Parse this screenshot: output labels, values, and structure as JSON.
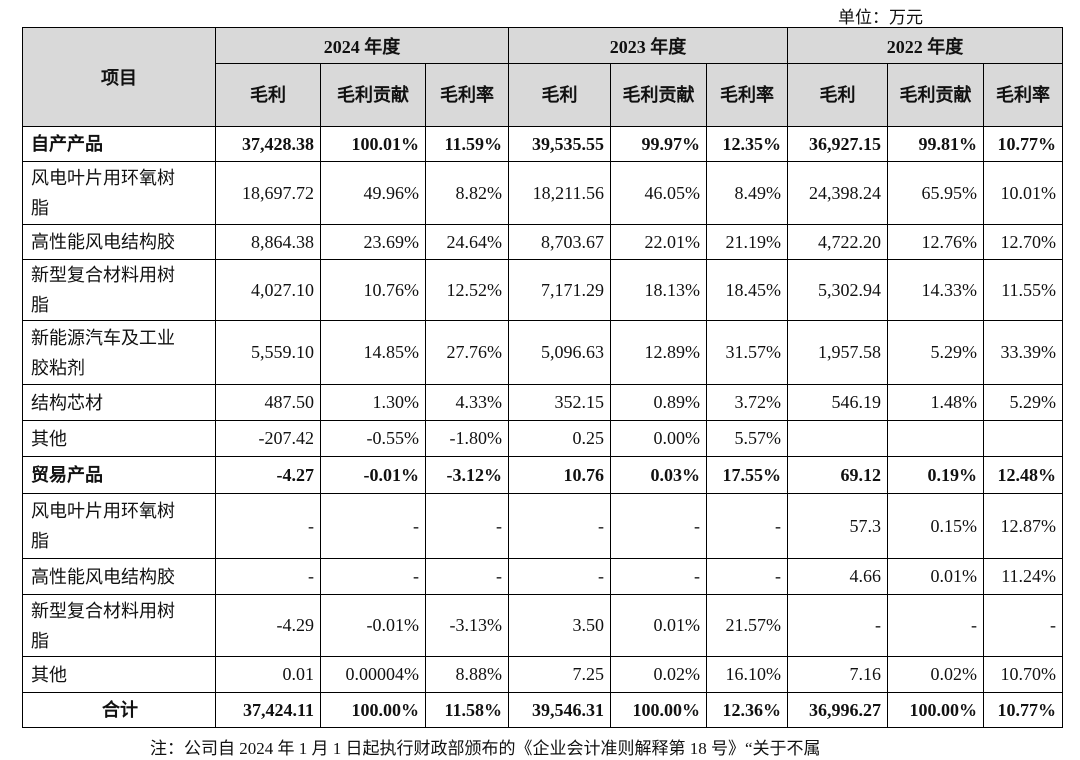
{
  "unit": "单位：万元",
  "table": {
    "item_header": "项目",
    "years": [
      "2024 年度",
      "2023 年度",
      "2022 年度"
    ],
    "columns": [
      "毛利",
      "毛利贡献",
      "毛利率",
      "毛利",
      "毛利贡献",
      "毛利率",
      "毛利",
      "毛利贡献",
      "毛利率"
    ],
    "rows": [
      {
        "label": "自产产品",
        "cells": [
          "37,428.38",
          "100.01%",
          "11.59%",
          "39,535.55",
          "99.97%",
          "12.35%",
          "36,927.15",
          "99.81%",
          "10.77%"
        ]
      },
      {
        "label": "风电叶片用环氧树脂",
        "cells": [
          "18,697.72",
          "49.96%",
          "8.82%",
          "18,211.56",
          "46.05%",
          "8.49%",
          "24,398.24",
          "65.95%",
          "10.01%"
        ]
      },
      {
        "label": "高性能风电结构胶",
        "cells": [
          "8,864.38",
          "23.69%",
          "24.64%",
          "8,703.67",
          "22.01%",
          "21.19%",
          "4,722.20",
          "12.76%",
          "12.70%"
        ]
      },
      {
        "label": "新型复合材料用树脂",
        "cells": [
          "4,027.10",
          "10.76%",
          "12.52%",
          "7,171.29",
          "18.13%",
          "18.45%",
          "5,302.94",
          "14.33%",
          "11.55%"
        ]
      },
      {
        "label": "新能源汽车及工业胶粘剂",
        "cells": [
          "5,559.10",
          "14.85%",
          "27.76%",
          "5,096.63",
          "12.89%",
          "31.57%",
          "1,957.58",
          "5.29%",
          "33.39%"
        ]
      },
      {
        "label": "结构芯材",
        "cells": [
          "487.50",
          "1.30%",
          "4.33%",
          "352.15",
          "0.89%",
          "3.72%",
          "546.19",
          "1.48%",
          "5.29%"
        ]
      },
      {
        "label": "其他",
        "cells": [
          "-207.42",
          "-0.55%",
          "-1.80%",
          "0.25",
          "0.00%",
          "5.57%",
          null,
          null,
          null
        ]
      },
      {
        "label": "贸易产品",
        "cells": [
          "-4.27",
          "-0.01%",
          "-3.12%",
          "10.76",
          "0.03%",
          "17.55%",
          "69.12",
          "0.19%",
          "12.48%"
        ]
      },
      {
        "label": "风电叶片用环氧树脂",
        "cells": [
          "-",
          "-",
          "-",
          "-",
          "-",
          "-",
          "57.3",
          "0.15%",
          "12.87%"
        ]
      },
      {
        "label": "高性能风电结构胶",
        "cells": [
          "-",
          "-",
          "-",
          "-",
          "-",
          "-",
          "4.66",
          "0.01%",
          "11.24%"
        ]
      },
      {
        "label": "新型复合材料用树脂",
        "cells": [
          "-4.29",
          "-0.01%",
          "-3.13%",
          "3.50",
          "0.01%",
          "21.57%",
          "-",
          "-",
          "-"
        ]
      },
      {
        "label": "其他",
        "cells": [
          "0.01",
          "0.00004%",
          "8.88%",
          "7.25",
          "0.02%",
          "16.10%",
          "7.16",
          "0.02%",
          "10.70%"
        ]
      },
      {
        "label": "合计",
        "cells": [
          "37,424.11",
          "100.00%",
          "11.58%",
          "39,546.31",
          "100.00%",
          "12.36%",
          "36,996.27",
          "100.00%",
          "10.77%"
        ]
      }
    ]
  },
  "footnote": "注：公司自 2024 年 1 月 1 日起执行财政部颁布的《企业会计准则解释第 18 号》“关于不属"
}
